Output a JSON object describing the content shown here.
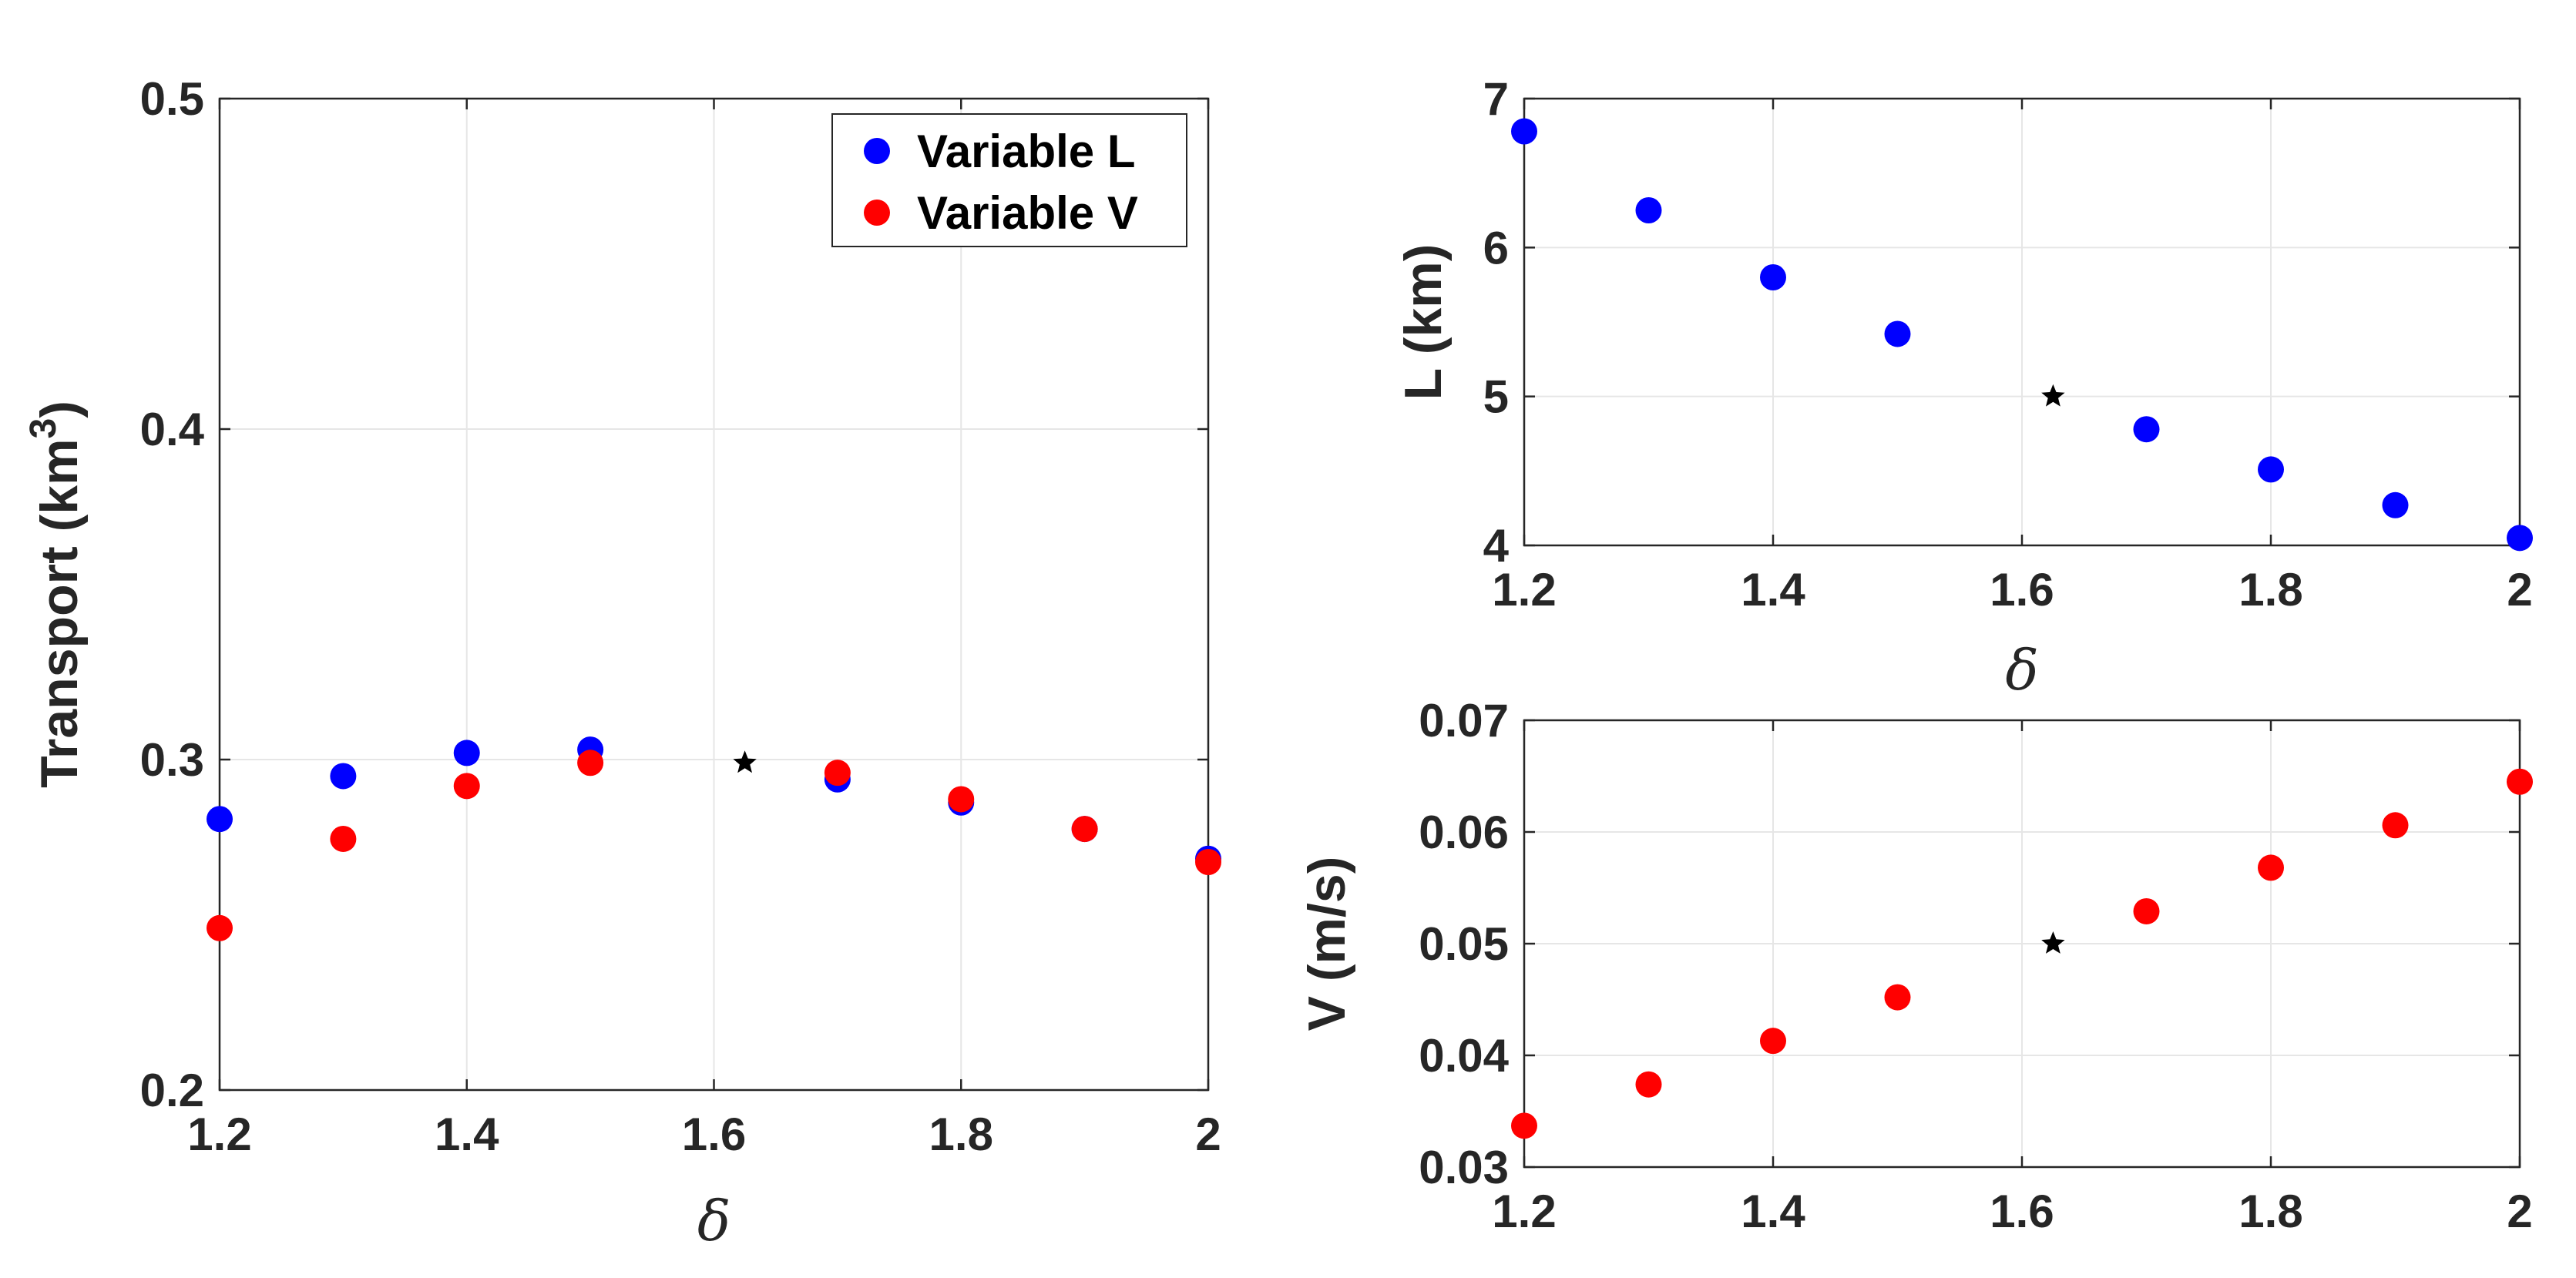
{
  "colors": {
    "variable_l": "#0000ff",
    "variable_v": "#ff0000",
    "reference": "#000000",
    "axis": "#262626",
    "grid": "#e6e6e6"
  },
  "chart_data": [
    {
      "id": "transport",
      "type": "scatter",
      "title": "",
      "xlabel": "δ",
      "ylabel": "Transport (km",
      "ylabel_superscript": "3",
      "ylabel_suffix": ")",
      "xlim": [
        1.2,
        2.0
      ],
      "ylim": [
        0.2,
        0.5
      ],
      "xticks": [
        1.2,
        1.4,
        1.6,
        1.8,
        2.0
      ],
      "xtick_labels": [
        "1.2",
        "1.4",
        "1.6",
        "1.8",
        "2"
      ],
      "yticks": [
        0.2,
        0.3,
        0.4,
        0.5
      ],
      "ytick_labels": [
        "0.2",
        "0.3",
        "0.4",
        "0.5"
      ],
      "grid": true,
      "legend": {
        "position": "top-right",
        "entries": [
          "Variable L",
          "Variable V"
        ]
      },
      "series": [
        {
          "name": "Variable L",
          "color": "#0000ff",
          "x": [
            1.2,
            1.3,
            1.4,
            1.5,
            1.7,
            1.8,
            1.9,
            2.0
          ],
          "y": [
            0.282,
            0.295,
            0.302,
            0.303,
            0.294,
            0.287,
            0.279,
            0.27
          ]
        },
        {
          "name": "Variable V",
          "color": "#ff0000",
          "x": [
            1.2,
            1.3,
            1.4,
            1.5,
            1.7,
            1.8,
            1.9,
            2.0
          ],
          "y": [
            0.249,
            0.276,
            0.292,
            0.299,
            0.296,
            0.288,
            0.279,
            0.269
          ]
        }
      ],
      "reference_point": {
        "x": 1.625,
        "y": 0.299
      }
    },
    {
      "id": "length",
      "type": "scatter",
      "title": "",
      "xlabel": "δ",
      "ylabel": "L (km)",
      "xlim": [
        1.2,
        2.0
      ],
      "ylim": [
        4,
        7
      ],
      "xticks": [
        1.2,
        1.4,
        1.6,
        1.8,
        2.0
      ],
      "xtick_labels": [
        "1.2",
        "1.4",
        "1.6",
        "1.8",
        "2"
      ],
      "yticks": [
        4,
        5,
        6,
        7
      ],
      "ytick_labels": [
        "4",
        "5",
        "6",
        "7"
      ],
      "grid": true,
      "series": [
        {
          "name": "Variable L",
          "color": "#0000ff",
          "x": [
            1.2,
            1.3,
            1.4,
            1.5,
            1.7,
            1.8,
            1.9,
            2.0
          ],
          "y": [
            6.78,
            6.25,
            5.8,
            5.42,
            4.78,
            4.51,
            4.27,
            4.05
          ]
        }
      ],
      "reference_point": {
        "x": 1.625,
        "y": 5.0
      }
    },
    {
      "id": "velocity",
      "type": "scatter",
      "title": "",
      "xlabel": "",
      "ylabel": "V (m/s)",
      "xlim": [
        1.2,
        2.0
      ],
      "ylim": [
        0.03,
        0.07
      ],
      "xticks": [
        1.2,
        1.4,
        1.6,
        1.8,
        2.0
      ],
      "xtick_labels": [
        "1.2",
        "1.4",
        "1.6",
        "1.8",
        "2"
      ],
      "yticks": [
        0.03,
        0.04,
        0.05,
        0.06,
        0.07
      ],
      "ytick_labels": [
        "0.03",
        "0.04",
        "0.05",
        "0.06",
        "0.07"
      ],
      "grid": true,
      "series": [
        {
          "name": "Variable V",
          "color": "#ff0000",
          "x": [
            1.2,
            1.3,
            1.4,
            1.5,
            1.7,
            1.8,
            1.9,
            2.0
          ],
          "y": [
            0.0337,
            0.0374,
            0.0413,
            0.0452,
            0.0529,
            0.0568,
            0.0606,
            0.0645
          ]
        }
      ],
      "reference_point": {
        "x": 1.625,
        "y": 0.05
      }
    }
  ]
}
